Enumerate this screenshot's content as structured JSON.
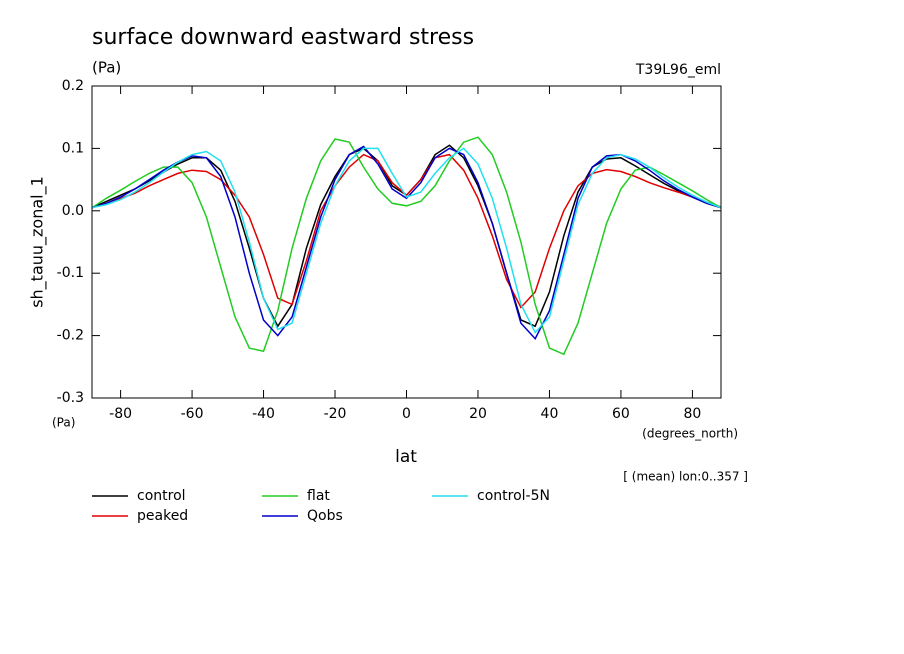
{
  "chart_data": {
    "type": "line",
    "title": "surface downward eastward stress",
    "units_label": "(Pa)",
    "run_label": "T39L96_eml",
    "ylabel": "sh_tauu_zonal_1",
    "y_units": "(Pa)",
    "x_units": "(degrees_north)",
    "xlabel": "lat",
    "annotation": "[ (mean) lon:0..357 ]",
    "xlim": [
      -88,
      88
    ],
    "ylim": [
      -0.3,
      0.2
    ],
    "xticks": [
      -80,
      -60,
      -40,
      -20,
      0,
      20,
      40,
      60,
      80
    ],
    "yticks": [
      -0.3,
      -0.2,
      -0.1,
      {
        "value": 0,
        "label": "0.0"
      },
      0.1,
      0.2
    ],
    "x": [
      -88,
      -84,
      -80,
      -76,
      -72,
      -68,
      -64,
      -60,
      -56,
      -52,
      -48,
      -44,
      -40,
      -36,
      -32,
      -28,
      -24,
      -20,
      -16,
      -12,
      -8,
      -4,
      0,
      4,
      8,
      12,
      16,
      20,
      24,
      28,
      32,
      36,
      40,
      44,
      48,
      52,
      56,
      60,
      64,
      68,
      72,
      76,
      80,
      84,
      88
    ],
    "series": [
      {
        "name": "control",
        "color": "#000000",
        "values": [
          0.005,
          0.015,
          0.025,
          0.035,
          0.048,
          0.062,
          0.075,
          0.085,
          0.085,
          0.065,
          0.015,
          -0.06,
          -0.14,
          -0.185,
          -0.15,
          -0.06,
          0.01,
          0.055,
          0.09,
          0.1,
          0.08,
          0.04,
          0.025,
          0.05,
          0.09,
          0.105,
          0.085,
          0.04,
          -0.02,
          -0.1,
          -0.175,
          -0.185,
          -0.13,
          -0.04,
          0.03,
          0.07,
          0.083,
          0.085,
          0.072,
          0.058,
          0.044,
          0.032,
          0.022,
          0.012,
          0.005
        ]
      },
      {
        "name": "peaked",
        "color": "#e00000",
        "values": [
          0.005,
          0.012,
          0.02,
          0.028,
          0.04,
          0.05,
          0.06,
          0.065,
          0.063,
          0.05,
          0.025,
          -0.01,
          -0.07,
          -0.14,
          -0.15,
          -0.08,
          0.0,
          0.04,
          0.07,
          0.09,
          0.08,
          0.045,
          0.025,
          0.05,
          0.085,
          0.09,
          0.065,
          0.02,
          -0.04,
          -0.11,
          -0.155,
          -0.13,
          -0.06,
          0.0,
          0.04,
          0.06,
          0.066,
          0.063,
          0.055,
          0.045,
          0.037,
          0.03,
          0.022,
          0.014,
          0.006
        ]
      },
      {
        "name": "flat",
        "color": "#22cc22",
        "values": [
          0.005,
          0.02,
          0.033,
          0.047,
          0.06,
          0.07,
          0.07,
          0.045,
          -0.01,
          -0.09,
          -0.17,
          -0.22,
          -0.225,
          -0.16,
          -0.06,
          0.02,
          0.08,
          0.115,
          0.11,
          0.07,
          0.035,
          0.012,
          0.008,
          0.015,
          0.04,
          0.08,
          0.11,
          0.118,
          0.09,
          0.03,
          -0.05,
          -0.15,
          -0.22,
          -0.23,
          -0.18,
          -0.1,
          -0.02,
          0.035,
          0.065,
          0.07,
          0.058,
          0.045,
          0.032,
          0.018,
          0.005
        ]
      },
      {
        "name": "Qobs",
        "color": "#0000cc",
        "values": [
          0.005,
          0.012,
          0.022,
          0.035,
          0.05,
          0.065,
          0.078,
          0.088,
          0.085,
          0.055,
          -0.01,
          -0.1,
          -0.175,
          -0.2,
          -0.17,
          -0.09,
          -0.01,
          0.05,
          0.09,
          0.103,
          0.075,
          0.035,
          0.02,
          0.045,
          0.085,
          0.1,
          0.09,
          0.045,
          -0.02,
          -0.1,
          -0.18,
          -0.205,
          -0.16,
          -0.07,
          0.02,
          0.07,
          0.088,
          0.09,
          0.08,
          0.065,
          0.048,
          0.034,
          0.022,
          0.012,
          0.005
        ]
      },
      {
        "name": "control-5N",
        "color": "#22e0f0",
        "values": [
          0.005,
          0.01,
          0.018,
          0.03,
          0.045,
          0.062,
          0.078,
          0.09,
          0.095,
          0.08,
          0.03,
          -0.05,
          -0.14,
          -0.19,
          -0.18,
          -0.1,
          -0.02,
          0.04,
          0.08,
          0.1,
          0.1,
          0.06,
          0.022,
          0.03,
          0.06,
          0.085,
          0.1,
          0.075,
          0.02,
          -0.06,
          -0.15,
          -0.195,
          -0.17,
          -0.08,
          0.01,
          0.06,
          0.085,
          0.09,
          0.083,
          0.07,
          0.053,
          0.038,
          0.025,
          0.014,
          0.005
        ]
      }
    ]
  }
}
